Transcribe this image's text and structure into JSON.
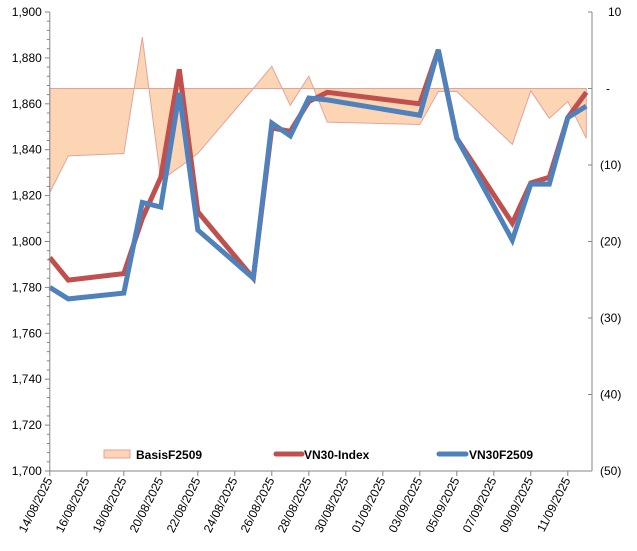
{
  "chart_data": {
    "type": "line",
    "title": "",
    "x": [
      "14/08/2025",
      "15/08/2025",
      "18/08/2025",
      "19/08/2025",
      "20/08/2025",
      "21/08/2025",
      "22/08/2025",
      "25/08/2025",
      "26/08/2025",
      "27/08/2025",
      "28/08/2025",
      "29/08/2025",
      "03/09/2025",
      "04/09/2025",
      "05/09/2025",
      "08/09/2025",
      "09/09/2025",
      "10/09/2025",
      "11/09/2025",
      "12/09/2025"
    ],
    "x_tick_labels": [
      "14/08/2025",
      "16/08/2025",
      "18/08/2025",
      "20/08/2025",
      "22/08/2025",
      "24/08/2025",
      "26/08/2025",
      "28/08/2025",
      "30/08/2025",
      "01/09/2025",
      "03/09/2025",
      "05/09/2025",
      "07/09/2025",
      "09/09/2025",
      "11/09/2025"
    ],
    "y_left": {
      "ylim": [
        1700,
        1900
      ],
      "tick_labels": [
        "1,900",
        "1,880",
        "1,860",
        "1,840",
        "1,820",
        "1,800",
        "1,780",
        "1,760",
        "1,740",
        "1,720",
        "1,700"
      ]
    },
    "y_right": {
      "ylim": [
        -50,
        10
      ],
      "tick_labels": [
        "10",
        "-",
        "(10)",
        "(20)",
        "(30)",
        "(40)",
        "(50)"
      ]
    },
    "series": [
      {
        "name": "BasisF2509",
        "type": "area",
        "axis": "right",
        "color": "#FCD5B4",
        "edge": "#E3A39B",
        "values": [
          -13.6,
          -8.8,
          -8.5,
          6.7,
          -12,
          -10.3,
          -8.5,
          0,
          2.9,
          -2.2,
          1.6,
          -4.4,
          -4.7,
          -0.4,
          -0.4,
          -7.3,
          -0.3,
          -3.9,
          -1.7,
          -6.5
        ]
      },
      {
        "name": "VN30-Index",
        "type": "line",
        "axis": "left",
        "color": "#C0504D",
        "values": [
          1793,
          1783.2,
          1786,
          1810,
          1828,
          1875,
          1813,
          1784,
          1849.5,
          1848,
          1861,
          1865,
          1860,
          1883.5,
          1845,
          1808,
          1825.5,
          1828,
          1854,
          1865
        ]
      },
      {
        "name": "VN30F2509",
        "type": "line",
        "axis": "left",
        "color": "#4F81BD",
        "values": [
          1780,
          1775,
          1777.5,
          1817,
          1815,
          1864.7,
          1805,
          1784,
          1851.6,
          1846,
          1862.5,
          1861.7,
          1855,
          1883.5,
          1845,
          1800.6,
          1825,
          1825,
          1854,
          1859
        ]
      }
    ],
    "legend": "bottom-inside",
    "grid": false
  }
}
